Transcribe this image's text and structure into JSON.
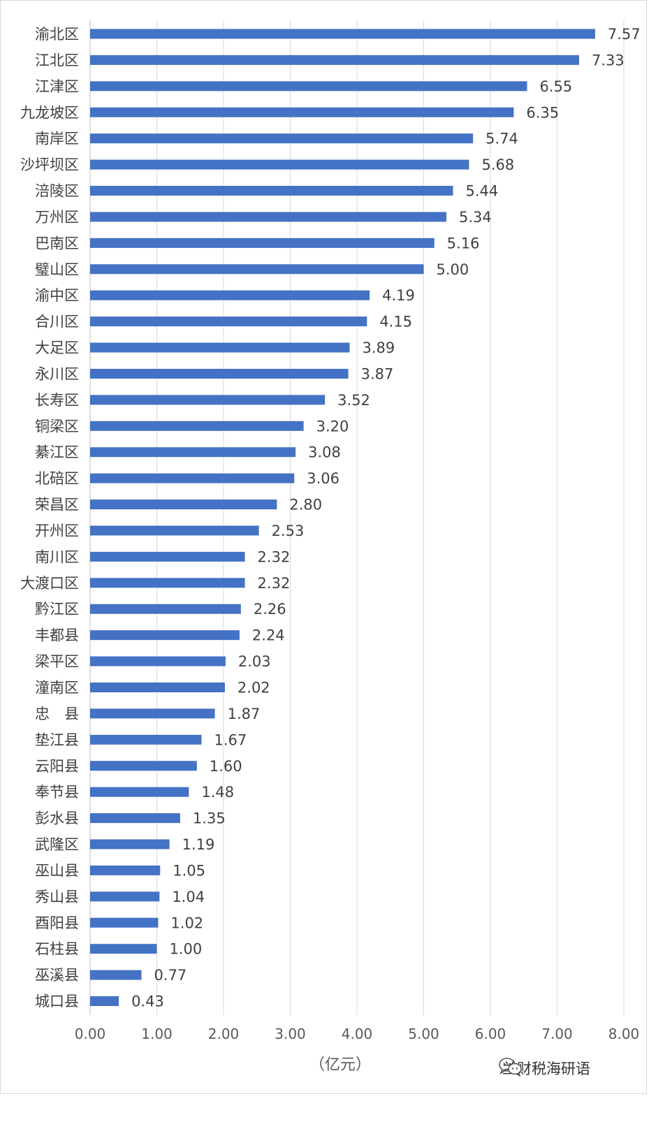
{
  "chart_data": {
    "type": "bar",
    "orientation": "horizontal",
    "categories": [
      "渝北区",
      "江北区",
      "江津区",
      "九龙坡区",
      "南岸区",
      "沙坪坝区",
      "涪陵区",
      "万州区",
      "巴南区",
      "璧山区",
      "渝中区",
      "合川区",
      "大足区",
      "永川区",
      "长寿区",
      "铜梁区",
      "綦江区",
      "北碚区",
      "荣昌区",
      "开州区",
      "南川区",
      "大渡口区",
      "黔江区",
      "丰都县",
      "梁平区",
      "潼南区",
      "忠　县",
      "垫江县",
      "云阳县",
      "奉节县",
      "彭水县",
      "武隆区",
      "巫山县",
      "秀山县",
      "酉阳县",
      "石柱县",
      "巫溪县",
      "城口县"
    ],
    "values": [
      7.57,
      7.33,
      6.55,
      6.35,
      5.74,
      5.68,
      5.44,
      5.34,
      5.16,
      5.0,
      4.19,
      4.15,
      3.89,
      3.87,
      3.52,
      3.2,
      3.08,
      3.06,
      2.8,
      2.53,
      2.32,
      2.32,
      2.26,
      2.24,
      2.03,
      2.02,
      1.87,
      1.67,
      1.6,
      1.48,
      1.35,
      1.19,
      1.05,
      1.04,
      1.02,
      1.0,
      0.77,
      0.43
    ],
    "value_labels": [
      "7.57",
      "7.33",
      "6.55",
      "6.35",
      "5.74",
      "5.68",
      "5.44",
      "5.34",
      "5.16",
      "5.00",
      "4.19",
      "4.15",
      "3.89",
      "3.87",
      "3.52",
      "3.20",
      "3.08",
      "3.06",
      "2.80",
      "2.53",
      "2.32",
      "2.32",
      "2.26",
      "2.24",
      "2.03",
      "2.02",
      "1.87",
      "1.67",
      "1.60",
      "1.48",
      "1.35",
      "1.19",
      "1.05",
      "1.04",
      "1.02",
      "1.00",
      "0.77",
      "0.43"
    ],
    "xlim": [
      0,
      8
    ],
    "xticks": [
      "0.00",
      "1.00",
      "2.00",
      "3.00",
      "4.00",
      "5.00",
      "6.00",
      "7.00",
      "8.00"
    ],
    "xlabel": "（亿元）",
    "grid": true,
    "bar_color": "#4472c4"
  },
  "watermark": {
    "text": "兰财税海研语",
    "icon": "wechat-icon"
  }
}
